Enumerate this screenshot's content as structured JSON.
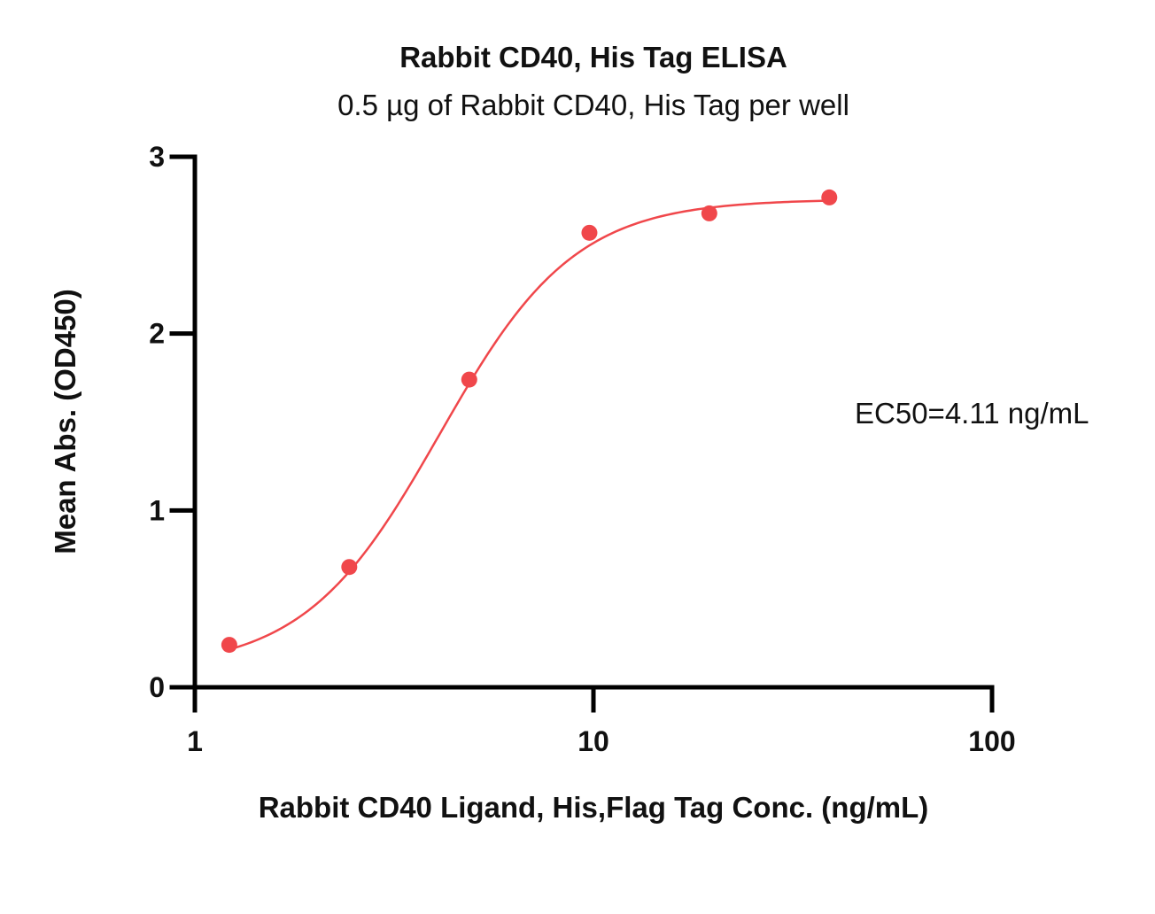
{
  "chart_data": {
    "type": "scatter",
    "title": "Rabbit CD40, His Tag ELISA",
    "subtitle": "0.5 µg of Rabbit CD40, His Tag per well",
    "xlabel": "Rabbit CD40 Ligand, His,Flag Tag Conc. (ng/mL)",
    "ylabel": "Mean Abs. (OD450)",
    "x_scale": "log",
    "xlim": [
      1,
      100
    ],
    "ylim": [
      0,
      3
    ],
    "x_ticks": [
      "1",
      "10",
      "100"
    ],
    "y_ticks": [
      "0",
      "1",
      "2",
      "3"
    ],
    "annotation": "EC50=4.11 ng/mL",
    "grid": false,
    "color": "#f0474b",
    "series": [
      {
        "x": [
          1.22,
          2.44,
          4.88,
          9.77,
          19.53,
          39.06
        ],
        "y": [
          0.24,
          0.68,
          1.74,
          2.57,
          2.68,
          2.77
        ]
      }
    ],
    "fit_curve": {
      "type": "4PL",
      "bottom": 0.1,
      "top": 2.76,
      "ec50": 4.11,
      "hill": 2.56
    }
  }
}
